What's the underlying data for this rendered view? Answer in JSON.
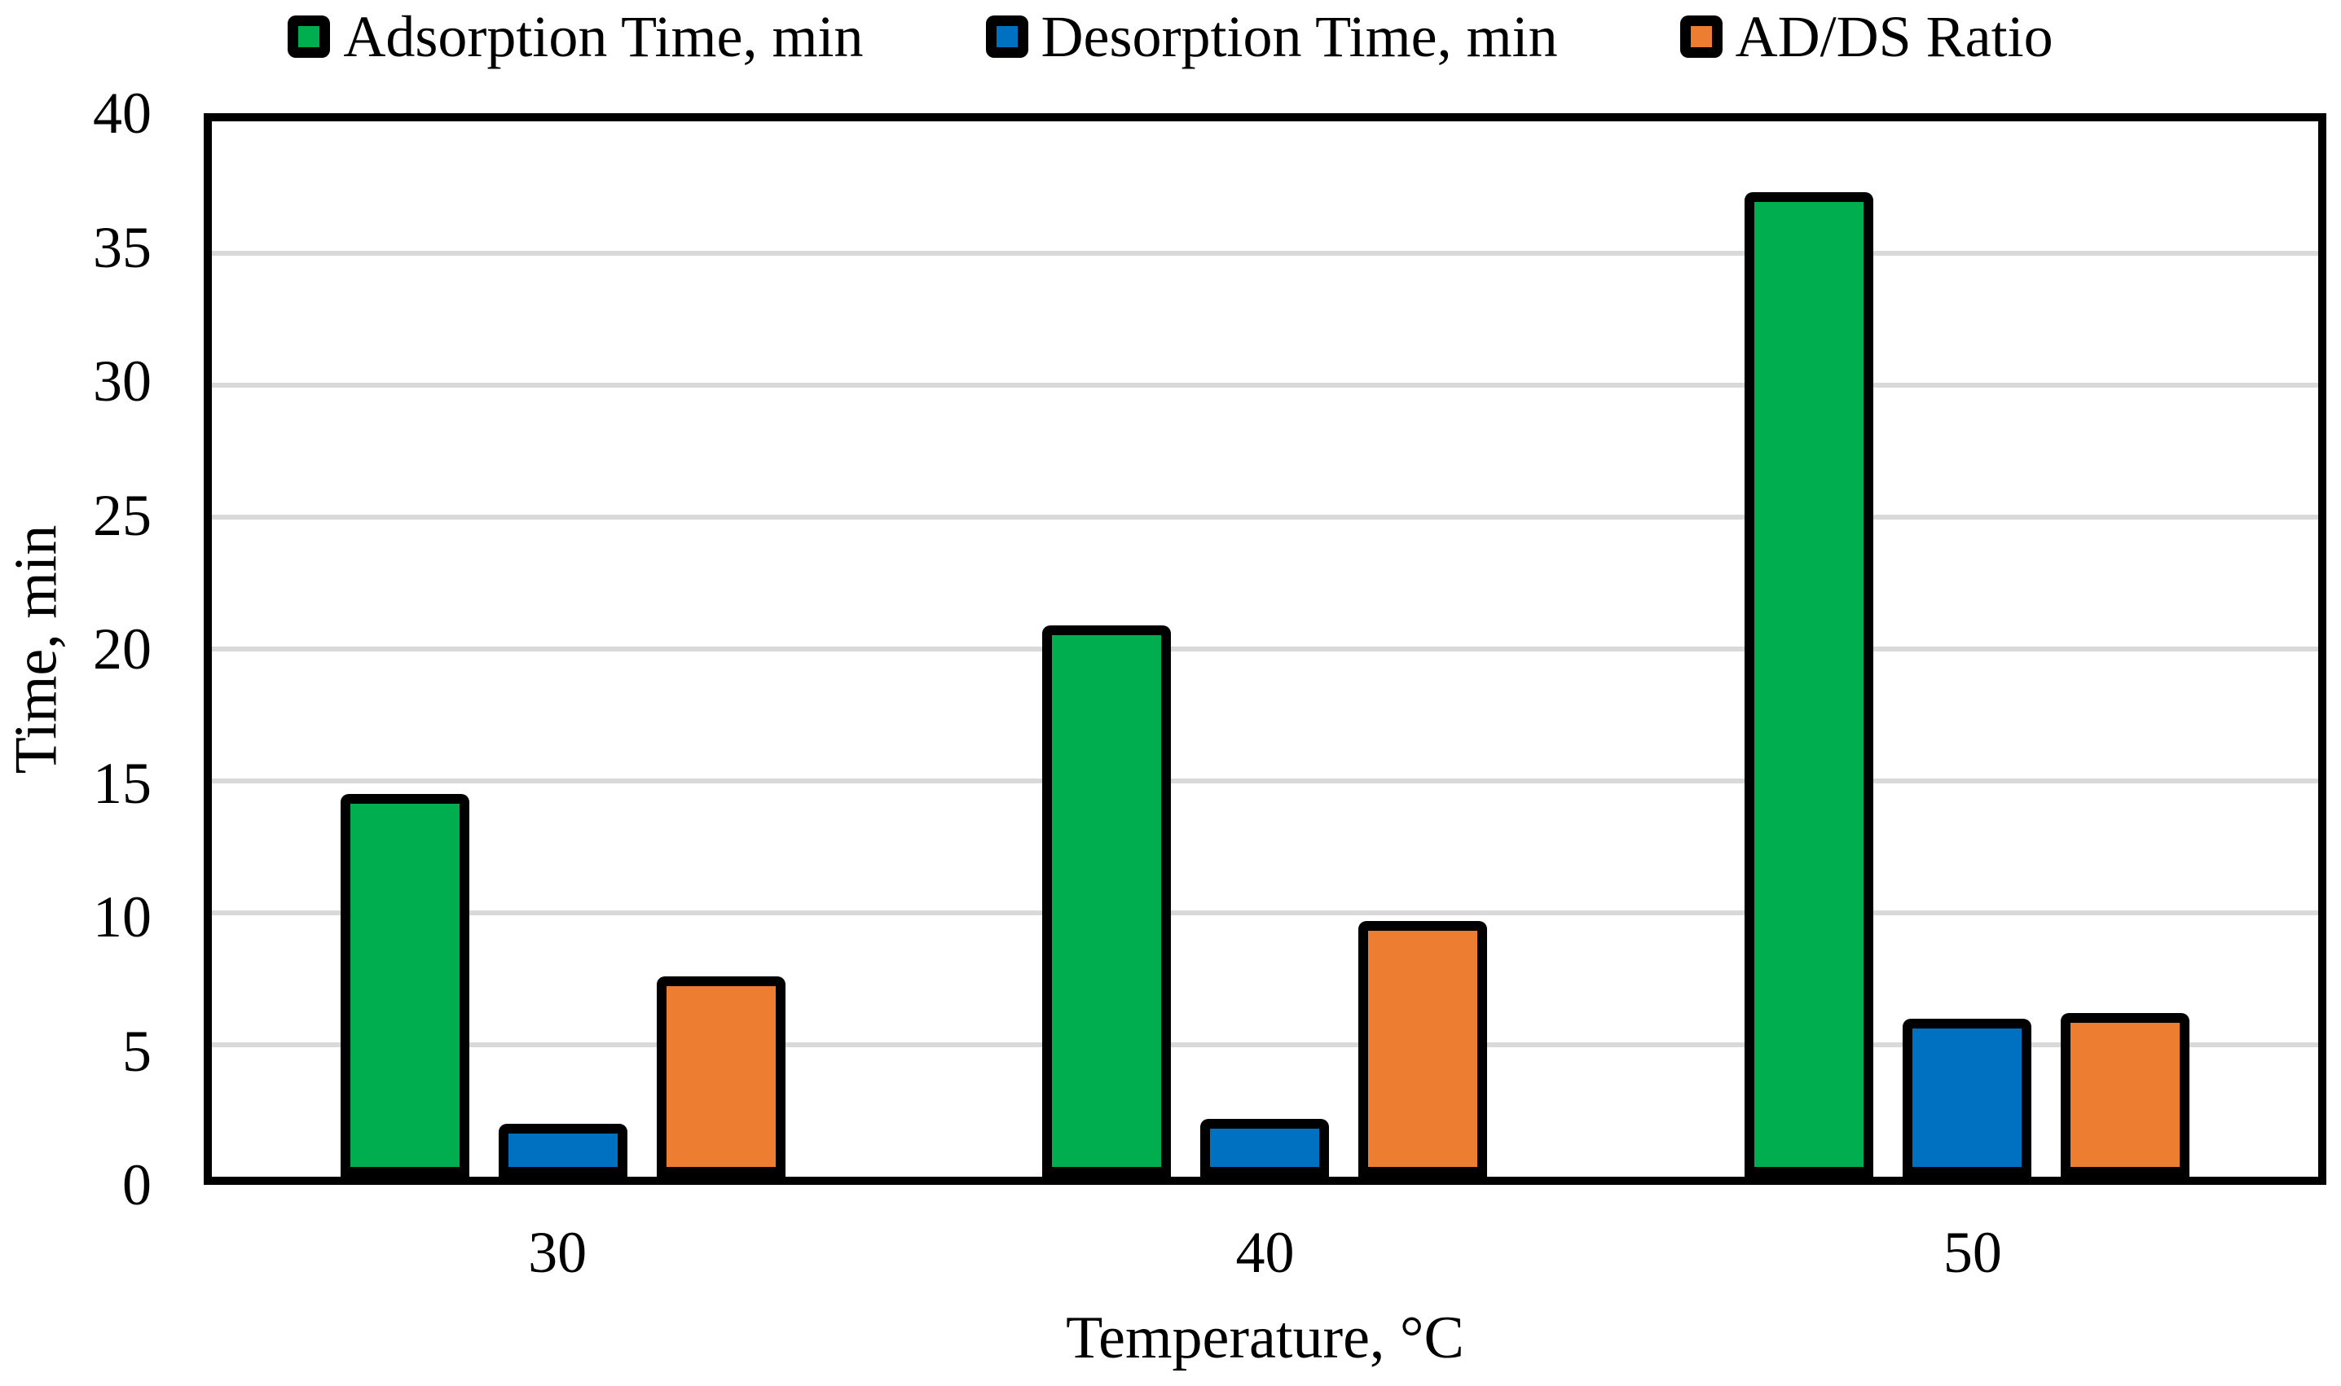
{
  "chart_data": {
    "type": "bar",
    "title": "",
    "categories": [
      "30",
      "40",
      "50"
    ],
    "series": [
      {
        "id": "adsorption-time",
        "name": "Adsorption Time, min",
        "color": "#00AE50",
        "values": [
          14.5,
          20.9,
          37.3
        ]
      },
      {
        "id": "desorption-time",
        "name": "Desorption Time, min",
        "color": "#0070C0",
        "values": [
          2.0,
          2.2,
          6.0
        ]
      },
      {
        "id": "ad-ds-ratio",
        "name": "AD/DS Ratio",
        "color": "#ED7D31",
        "values": [
          7.6,
          9.7,
          6.2
        ]
      }
    ],
    "xlabel": "Temperature, °C",
    "ylabel": "Time, min",
    "ylim": [
      0,
      40
    ],
    "yticks": [
      0,
      5,
      10,
      15,
      20,
      25,
      30,
      35,
      40
    ],
    "grid": "horizontal-only",
    "gridline_color": "#D9D9D9",
    "bar_border_color": "#000000",
    "axis_frame_color": "#000000",
    "legend_position": "top"
  }
}
